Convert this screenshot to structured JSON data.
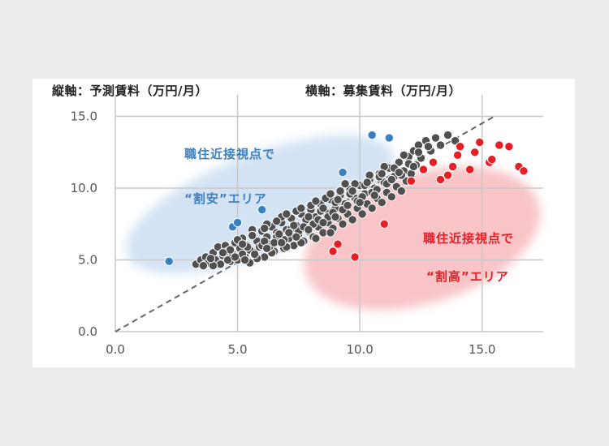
{
  "chart_data": {
    "type": "scatter",
    "title": "",
    "ylabel": "縦軸：予測賃料（万円/月）",
    "xlabel": "横軸：募集賃料（万円/月）",
    "xlim": [
      0,
      17.5
    ],
    "ylim": [
      0,
      16.5
    ],
    "x_ticks": [
      "0.0",
      "5.0",
      "10.0",
      "15.0"
    ],
    "y_ticks": [
      "0.0",
      "5.0",
      "10.0",
      "15.0"
    ],
    "grid": true,
    "reference_line": {
      "from": [
        0,
        0
      ],
      "to": [
        15.5,
        15
      ],
      "style": "dashed"
    },
    "zones": [
      {
        "name": "undervalued",
        "label_line1": "職住近接視点で",
        "label_line2": "“割安”エリア",
        "color": "#cfe1f3"
      },
      {
        "name": "overvalued",
        "label_line1": "職住近接視点で",
        "label_line2": "“割高”エリア",
        "color": "#f7c1c4"
      }
    ],
    "series": [
      {
        "key": "undervalued_points",
        "color": "#3c7fc1",
        "points": [
          [
            2.2,
            4.9
          ],
          [
            4.8,
            7.3
          ],
          [
            5.0,
            7.6
          ],
          [
            6.0,
            8.5
          ],
          [
            9.3,
            11.1
          ],
          [
            10.5,
            13.7
          ],
          [
            11.2,
            13.5
          ]
        ]
      },
      {
        "key": "overvalued_points",
        "color": "#e81e25",
        "points": [
          [
            8.9,
            5.6
          ],
          [
            9.1,
            6.1
          ],
          [
            9.8,
            5.2
          ],
          [
            11.0,
            7.5
          ],
          [
            12.1,
            10.5
          ],
          [
            12.6,
            11.3
          ],
          [
            13.0,
            11.8
          ],
          [
            13.3,
            10.6
          ],
          [
            13.6,
            10.9
          ],
          [
            13.8,
            11.5
          ],
          [
            14.0,
            12.3
          ],
          [
            14.1,
            12.9
          ],
          [
            14.5,
            11.3
          ],
          [
            14.7,
            12.5
          ],
          [
            14.9,
            13.2
          ],
          [
            15.3,
            11.8
          ],
          [
            15.4,
            12.0
          ],
          [
            15.7,
            13.0
          ],
          [
            16.1,
            12.9
          ],
          [
            16.5,
            11.5
          ],
          [
            16.7,
            11.2
          ]
        ]
      },
      {
        "key": "cluster_points",
        "color": "#505050",
        "points": [
          [
            3.3,
            4.7
          ],
          [
            3.5,
            5.0
          ],
          [
            3.7,
            5.2
          ],
          [
            3.8,
            4.8
          ],
          [
            4.0,
            5.5
          ],
          [
            4.1,
            5.0
          ],
          [
            4.2,
            5.9
          ],
          [
            4.3,
            4.7
          ],
          [
            4.4,
            5.3
          ],
          [
            4.5,
            6.0
          ],
          [
            4.6,
            5.6
          ],
          [
            4.7,
            4.9
          ],
          [
            4.8,
            5.4
          ],
          [
            4.9,
            6.2
          ],
          [
            5.0,
            5.0
          ],
          [
            5.1,
            5.8
          ],
          [
            5.2,
            6.5
          ],
          [
            5.3,
            5.3
          ],
          [
            5.4,
            6.0
          ],
          [
            5.5,
            4.8
          ],
          [
            5.6,
            6.8
          ],
          [
            5.7,
            5.5
          ],
          [
            5.8,
            6.3
          ],
          [
            5.9,
            5.9
          ],
          [
            6.0,
            7.0
          ],
          [
            6.1,
            5.2
          ],
          [
            6.2,
            6.6
          ],
          [
            6.3,
            6.1
          ],
          [
            6.4,
            7.3
          ],
          [
            6.5,
            5.6
          ],
          [
            6.6,
            6.9
          ],
          [
            6.7,
            6.3
          ],
          [
            6.8,
            7.6
          ],
          [
            6.9,
            5.8
          ],
          [
            7.0,
            7.1
          ],
          [
            7.1,
            6.5
          ],
          [
            7.2,
            7.9
          ],
          [
            7.3,
            6.0
          ],
          [
            7.4,
            7.4
          ],
          [
            7.5,
            6.8
          ],
          [
            7.6,
            8.2
          ],
          [
            7.7,
            6.3
          ],
          [
            7.8,
            7.7
          ],
          [
            7.9,
            7.0
          ],
          [
            8.0,
            8.5
          ],
          [
            8.1,
            6.6
          ],
          [
            8.2,
            8.0
          ],
          [
            8.3,
            7.3
          ],
          [
            8.4,
            8.9
          ],
          [
            8.5,
            6.9
          ],
          [
            8.6,
            8.3
          ],
          [
            8.7,
            7.6
          ],
          [
            8.8,
            9.2
          ],
          [
            8.9,
            7.2
          ],
          [
            9.0,
            8.6
          ],
          [
            9.1,
            7.9
          ],
          [
            9.2,
            9.5
          ],
          [
            9.3,
            7.5
          ],
          [
            9.4,
            8.9
          ],
          [
            9.5,
            8.2
          ],
          [
            9.6,
            9.9
          ],
          [
            9.7,
            7.8
          ],
          [
            9.8,
            9.3
          ],
          [
            9.9,
            8.6
          ],
          [
            10.0,
            10.2
          ],
          [
            10.1,
            8.2
          ],
          [
            10.2,
            9.6
          ],
          [
            10.3,
            8.9
          ],
          [
            10.4,
            10.6
          ],
          [
            10.5,
            8.6
          ],
          [
            10.6,
            10.0
          ],
          [
            10.7,
            9.3
          ],
          [
            10.8,
            11.0
          ],
          [
            10.9,
            9.0
          ],
          [
            11.0,
            10.4
          ],
          [
            11.1,
            9.7
          ],
          [
            11.2,
            11.4
          ],
          [
            11.3,
            9.4
          ],
          [
            11.4,
            10.8
          ],
          [
            11.5,
            10.1
          ],
          [
            11.6,
            11.8
          ],
          [
            11.7,
            9.8
          ],
          [
            11.8,
            11.2
          ],
          [
            11.9,
            10.5
          ],
          [
            12.0,
            12.2
          ],
          [
            12.1,
            11.0
          ],
          [
            12.2,
            12.6
          ],
          [
            12.3,
            11.6
          ],
          [
            12.4,
            13.0
          ],
          [
            12.5,
            12.1
          ],
          [
            12.7,
            13.3
          ],
          [
            12.9,
            12.6
          ],
          [
            13.1,
            13.5
          ],
          [
            13.3,
            13.0
          ],
          [
            13.6,
            13.7
          ],
          [
            13.9,
            13.3
          ],
          [
            4.0,
            4.6
          ],
          [
            4.6,
            5.0
          ],
          [
            5.2,
            5.4
          ],
          [
            5.8,
            5.1
          ],
          [
            6.4,
            5.5
          ],
          [
            7.0,
            5.9
          ],
          [
            7.6,
            6.2
          ],
          [
            8.2,
            6.5
          ],
          [
            8.8,
            6.9
          ],
          [
            5.0,
            6.4
          ],
          [
            5.6,
            7.1
          ],
          [
            6.2,
            7.5
          ],
          [
            6.8,
            8.0
          ],
          [
            7.4,
            8.4
          ],
          [
            8.0,
            8.8
          ],
          [
            8.6,
            9.3
          ],
          [
            9.2,
            9.8
          ],
          [
            9.8,
            10.3
          ],
          [
            10.4,
            10.9
          ],
          [
            11.0,
            11.5
          ],
          [
            6.0,
            6.0
          ],
          [
            6.6,
            6.6
          ],
          [
            7.2,
            7.2
          ],
          [
            7.8,
            7.8
          ],
          [
            8.4,
            8.4
          ],
          [
            9.0,
            9.0
          ],
          [
            9.6,
            9.6
          ],
          [
            10.2,
            10.2
          ],
          [
            10.8,
            10.8
          ],
          [
            11.4,
            11.4
          ],
          [
            6.3,
            5.9
          ],
          [
            6.9,
            6.4
          ],
          [
            7.5,
            7.0
          ],
          [
            8.1,
            7.5
          ],
          [
            8.7,
            8.0
          ],
          [
            9.3,
            8.5
          ],
          [
            9.9,
            9.1
          ],
          [
            10.5,
            9.7
          ],
          [
            11.1,
            10.3
          ],
          [
            11.7,
            10.9
          ],
          [
            5.5,
            5.7
          ],
          [
            6.1,
            6.3
          ],
          [
            6.7,
            6.8
          ],
          [
            7.3,
            7.4
          ],
          [
            7.9,
            8.0
          ],
          [
            8.5,
            8.6
          ],
          [
            9.1,
            9.2
          ],
          [
            9.7,
            9.8
          ],
          [
            10.3,
            10.4
          ],
          [
            10.9,
            11.0
          ],
          [
            4.9,
            5.2
          ],
          [
            5.4,
            5.9
          ],
          [
            6.5,
            6.2
          ],
          [
            7.1,
            6.9
          ],
          [
            7.7,
            7.3
          ],
          [
            8.3,
            7.8
          ],
          [
            8.9,
            8.3
          ],
          [
            9.5,
            8.8
          ],
          [
            10.1,
            9.4
          ],
          [
            10.7,
            9.9
          ],
          [
            12.0,
            11.7
          ],
          [
            12.4,
            12.5
          ],
          [
            12.8,
            12.9
          ],
          [
            11.8,
            12.3
          ],
          [
            12.2,
            11.5
          ],
          [
            9.4,
            10.3
          ],
          [
            8.8,
            9.6
          ],
          [
            8.2,
            9.1
          ],
          [
            7.6,
            8.6
          ],
          [
            7.0,
            8.2
          ],
          [
            6.6,
            7.7
          ],
          [
            6.1,
            7.2
          ],
          [
            5.6,
            6.7
          ],
          [
            5.2,
            6.1
          ],
          [
            4.7,
            5.7
          ],
          [
            4.4,
            5.5
          ],
          [
            3.9,
            5.1
          ],
          [
            3.6,
            4.6
          ],
          [
            10.0,
            9.0
          ],
          [
            10.6,
            9.5
          ],
          [
            11.3,
            10.6
          ],
          [
            11.6,
            11.1
          ],
          [
            9.0,
            8.0
          ],
          [
            8.5,
            7.6
          ],
          [
            7.9,
            7.1
          ],
          [
            7.4,
            6.6
          ],
          [
            6.8,
            6.2
          ],
          [
            6.2,
            5.8
          ],
          [
            5.7,
            5.4
          ],
          [
            5.3,
            5.0
          ]
        ]
      }
    ]
  }
}
